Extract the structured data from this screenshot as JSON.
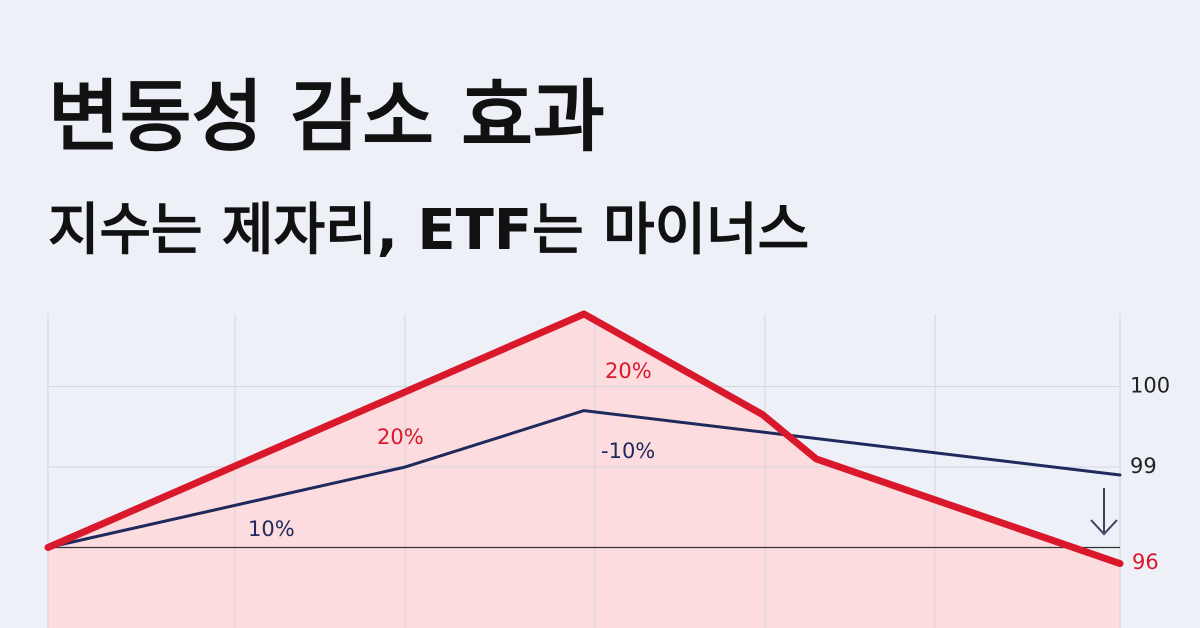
{
  "title": "변동성 감소 효과",
  "subtitle": "지수는 제자리, ETF는 마이너스",
  "chart_data": {
    "type": "line",
    "xlim": [
      0,
      6
    ],
    "ylim": [
      97,
      100.9
    ],
    "yticks": [
      99,
      100
    ],
    "grid": true,
    "series": [
      {
        "color": "#1f2a5c",
        "x": [
          0,
          2,
          3,
          6
        ],
        "values": [
          98,
          99,
          99.7,
          98.9
        ]
      },
      {
        "color": "#d9182b",
        "x": [
          0,
          3,
          4,
          4.3,
          6
        ],
        "values": [
          98,
          100.9,
          99.65,
          99.1,
          97.8
        ],
        "area_color": "#fcdcdf"
      }
    ],
    "annotations": [
      {
        "text": "10%",
        "color": "#1f2a5c"
      },
      {
        "text": "20%",
        "color": "#d9182b"
      },
      {
        "text": "20%",
        "color": "#d9182b"
      },
      {
        "text": "-10%",
        "color": "#1f2a5c"
      },
      {
        "text": "96",
        "color": "#d9182b"
      }
    ]
  }
}
